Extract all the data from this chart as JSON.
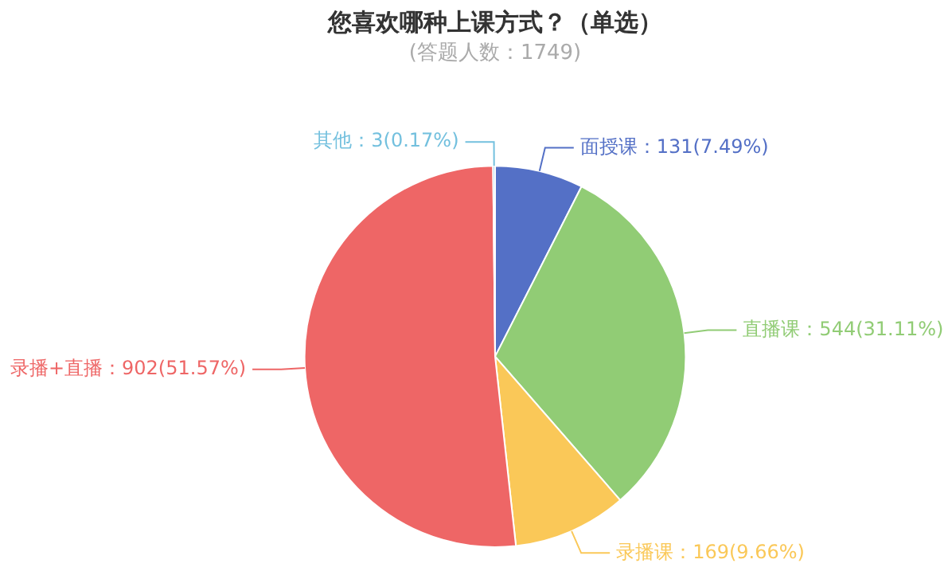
{
  "chart_data": {
    "type": "pie",
    "title": "您喜欢哪种上课方式？（单选）",
    "subtitle": "(答题人数：1749)",
    "categories": [
      "面授课",
      "直播课",
      "录播课",
      "录播+直播",
      "其他"
    ],
    "values": [
      131,
      544,
      169,
      902,
      3
    ],
    "colors": [
      "#5470c6",
      "#91cc75",
      "#fac858",
      "#ee6666",
      "#73c0de"
    ],
    "value_labels": [
      "131(7.49%)",
      "544(31.11%)",
      "169(9.66%)",
      "902(51.57%)",
      "3(0.17%)"
    ],
    "legend": false
  }
}
